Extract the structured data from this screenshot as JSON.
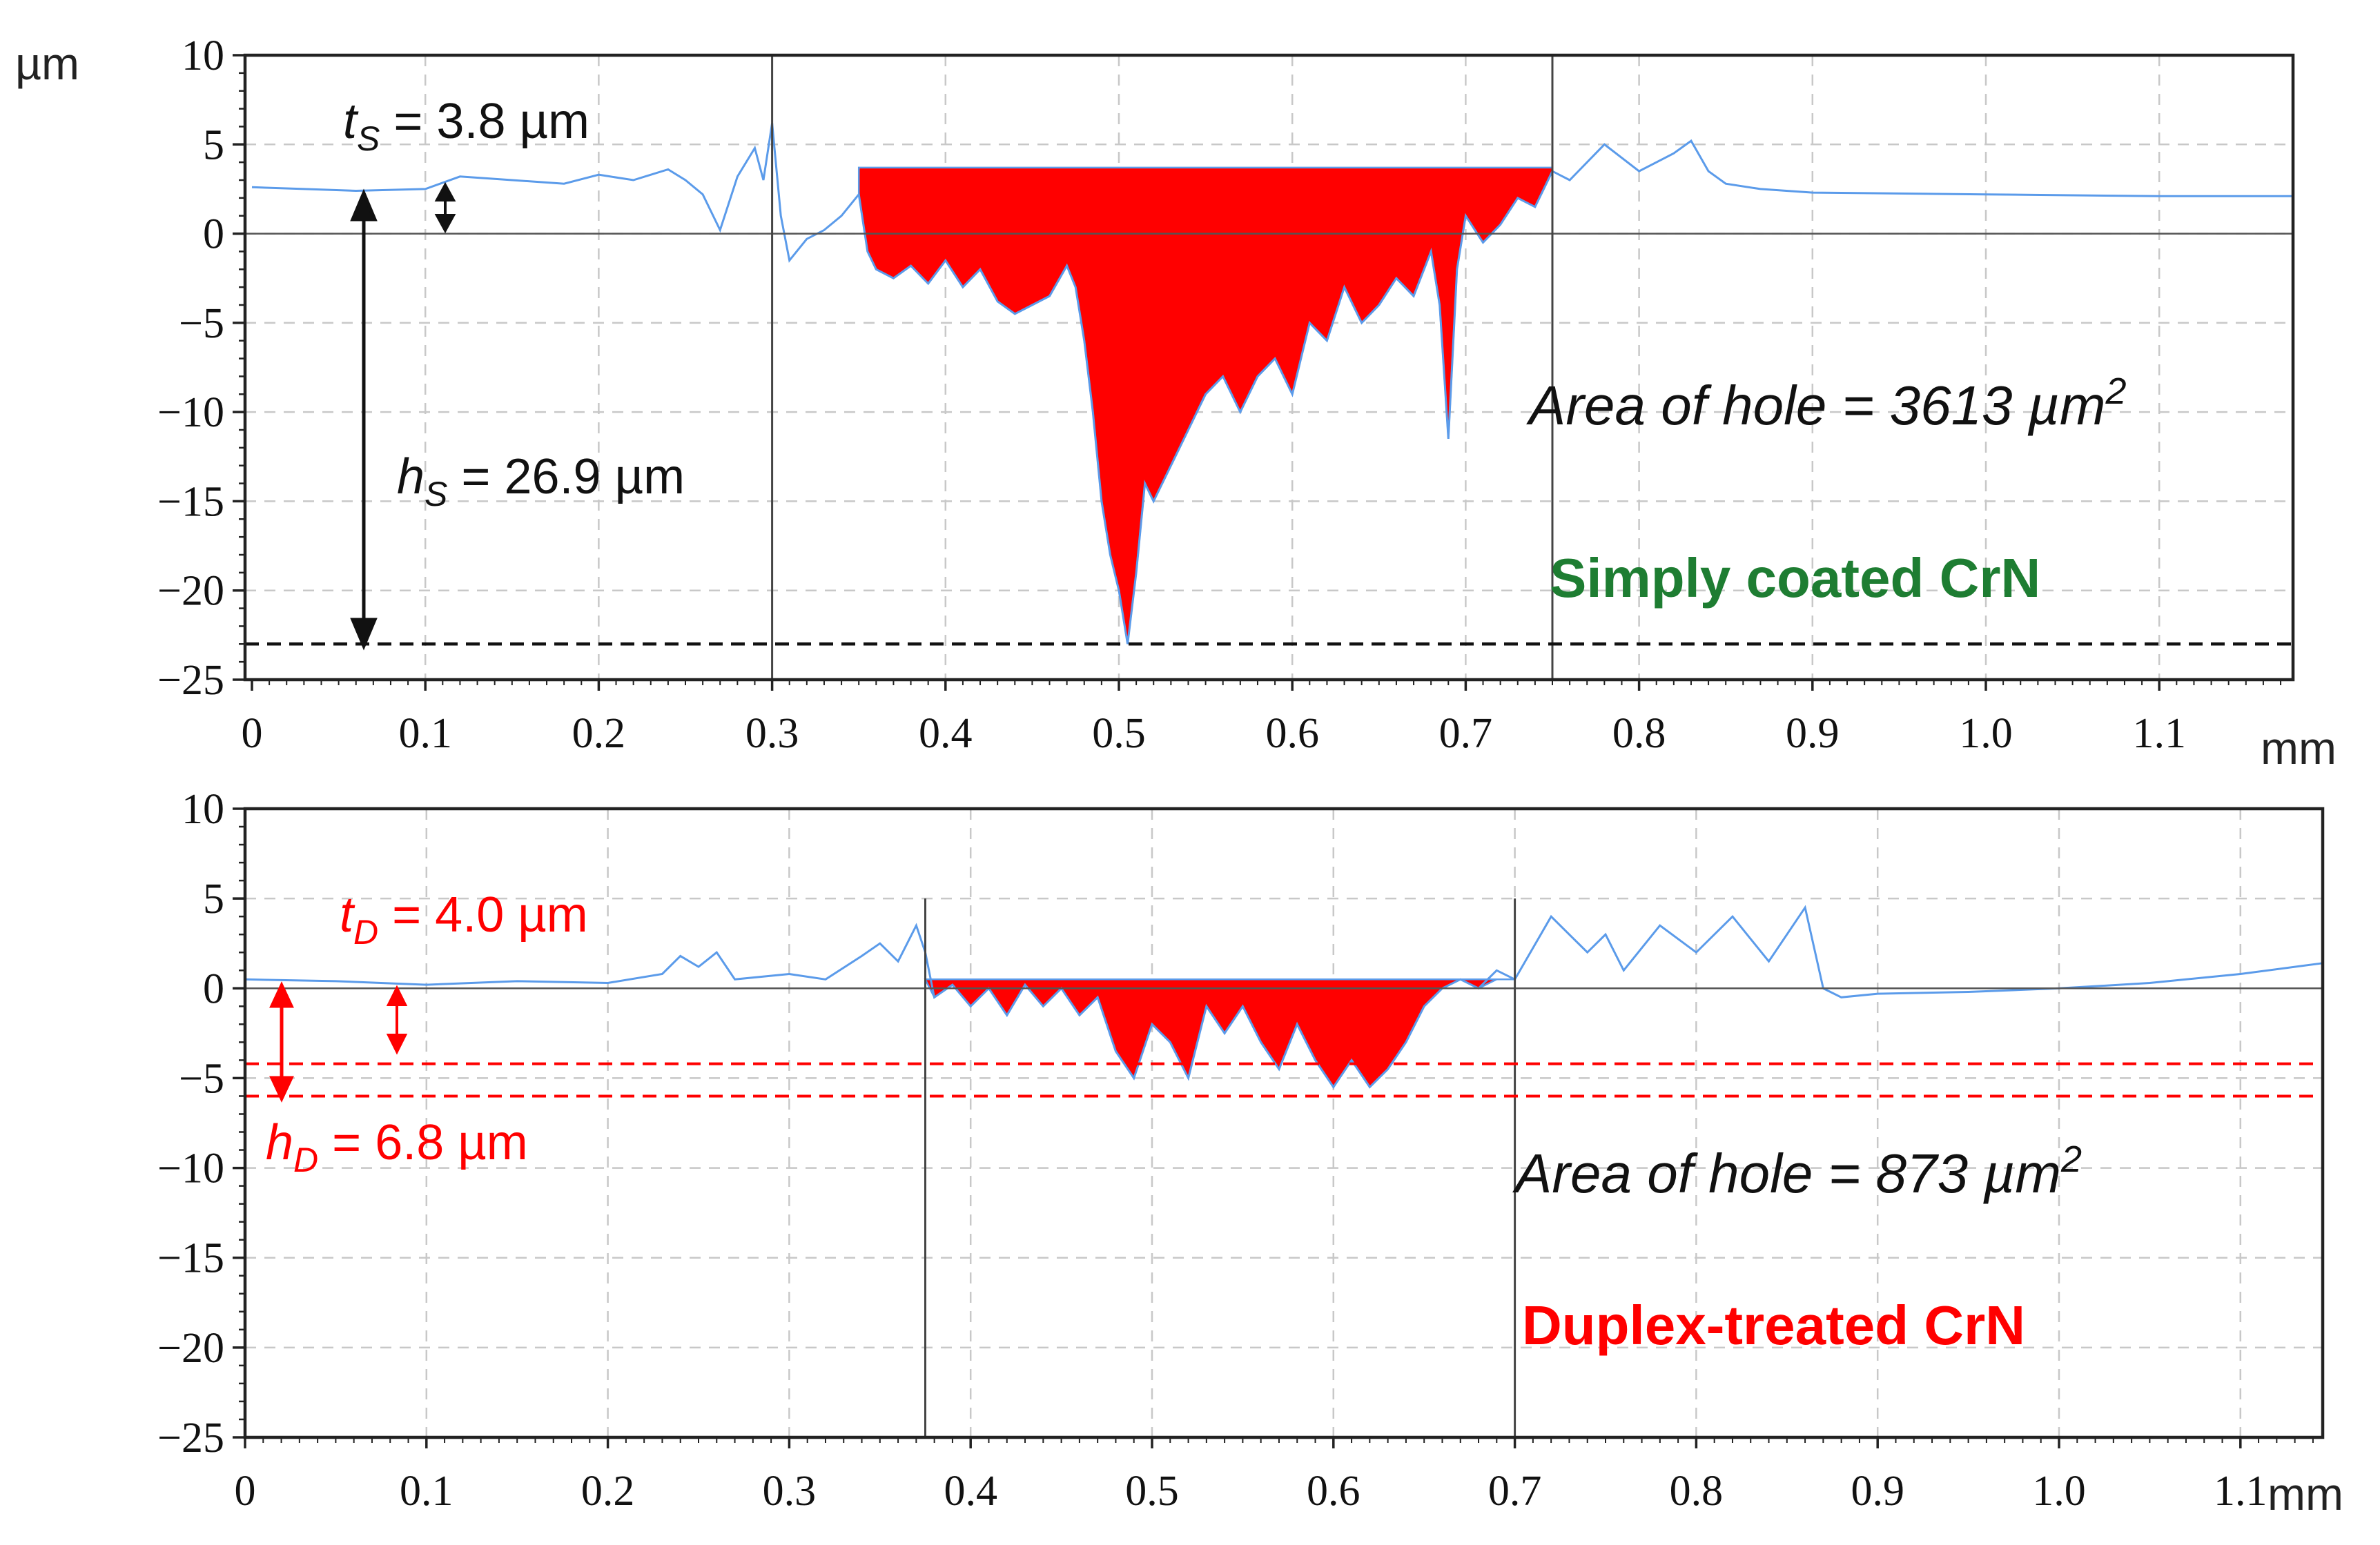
{
  "chart_data": [
    {
      "type": "line",
      "panel": "top",
      "ylabel": "µm",
      "xlabel": "mm",
      "ylim": [
        -25,
        10
      ],
      "xlim": [
        0,
        1.2
      ],
      "y_ticks": [
        10,
        5,
        0,
        -5,
        -10,
        -15,
        -20,
        -25
      ],
      "y_tick_labels": [
        "10",
        "5",
        "0",
        "−5",
        "−10",
        "−15",
        "−20",
        "−25"
      ],
      "x_ticks": [
        0,
        0.1,
        0.2,
        0.3,
        0.4,
        0.5,
        0.6,
        0.7,
        0.8,
        0.9,
        1.0,
        1.1
      ],
      "x_tick_labels": [
        "0",
        "0.1",
        "0.2",
        "0.3",
        "0.4",
        "0.5",
        "0.6",
        "0.7",
        "0.8",
        "0.9",
        "1.0",
        "1.1"
      ],
      "vertical_markers": [
        0.3,
        0.75
      ],
      "reference_level": -23,
      "hole": {
        "x_start": 0.35,
        "x_end": 0.75,
        "top": 3.7
      },
      "series": [
        {
          "name": "surface profile",
          "color": "#5b9bea",
          "points": [
            [
              0,
              2.6
            ],
            [
              0.03,
              2.5
            ],
            [
              0.06,
              2.4
            ],
            [
              0.1,
              2.5
            ],
            [
              0.12,
              3.2
            ],
            [
              0.15,
              3.0
            ],
            [
              0.18,
              2.8
            ],
            [
              0.2,
              3.3
            ],
            [
              0.22,
              3.0
            ],
            [
              0.24,
              3.6
            ],
            [
              0.25,
              3.0
            ],
            [
              0.26,
              2.2
            ],
            [
              0.27,
              0.2
            ],
            [
              0.28,
              3.2
            ],
            [
              0.29,
              4.8
            ],
            [
              0.295,
              3.0
            ],
            [
              0.3,
              6.2
            ],
            [
              0.305,
              1.0
            ],
            [
              0.31,
              -1.5
            ],
            [
              0.32,
              -0.3
            ],
            [
              0.33,
              0.2
            ],
            [
              0.34,
              1.0
            ],
            [
              0.35,
              2.2
            ],
            [
              0.355,
              -1.0
            ],
            [
              0.36,
              -2.0
            ],
            [
              0.37,
              -2.5
            ],
            [
              0.38,
              -1.8
            ],
            [
              0.39,
              -2.8
            ],
            [
              0.4,
              -1.5
            ],
            [
              0.41,
              -3.0
            ],
            [
              0.42,
              -2.0
            ],
            [
              0.43,
              -3.8
            ],
            [
              0.44,
              -4.5
            ],
            [
              0.45,
              -4.0
            ],
            [
              0.46,
              -3.5
            ],
            [
              0.47,
              -1.8
            ],
            [
              0.475,
              -3.0
            ],
            [
              0.48,
              -6.0
            ],
            [
              0.485,
              -10.0
            ],
            [
              0.49,
              -15.0
            ],
            [
              0.495,
              -18.0
            ],
            [
              0.5,
              -20.0
            ],
            [
              0.505,
              -23.0
            ],
            [
              0.51,
              -19.0
            ],
            [
              0.515,
              -14.0
            ],
            [
              0.52,
              -15.0
            ],
            [
              0.53,
              -13.0
            ],
            [
              0.54,
              -11.0
            ],
            [
              0.55,
              -9.0
            ],
            [
              0.56,
              -8.0
            ],
            [
              0.57,
              -10.0
            ],
            [
              0.58,
              -8.0
            ],
            [
              0.59,
              -7.0
            ],
            [
              0.6,
              -9.0
            ],
            [
              0.61,
              -5.0
            ],
            [
              0.62,
              -6.0
            ],
            [
              0.63,
              -3.0
            ],
            [
              0.64,
              -5.0
            ],
            [
              0.65,
              -4.0
            ],
            [
              0.66,
              -2.5
            ],
            [
              0.67,
              -3.5
            ],
            [
              0.68,
              -1.0
            ],
            [
              0.685,
              -4.0
            ],
            [
              0.69,
              -11.5
            ],
            [
              0.695,
              -2.0
            ],
            [
              0.7,
              1.0
            ],
            [
              0.71,
              -0.5
            ],
            [
              0.72,
              0.5
            ],
            [
              0.73,
              2.0
            ],
            [
              0.74,
              1.5
            ],
            [
              0.75,
              3.5
            ],
            [
              0.76,
              3.0
            ],
            [
              0.78,
              5.0
            ],
            [
              0.8,
              3.5
            ],
            [
              0.82,
              4.5
            ],
            [
              0.83,
              5.2
            ],
            [
              0.84,
              3.5
            ],
            [
              0.85,
              2.8
            ],
            [
              0.87,
              2.5
            ],
            [
              0.9,
              2.3
            ],
            [
              1.0,
              2.2
            ],
            [
              1.1,
              2.1
            ],
            [
              1.2,
              2.1
            ]
          ]
        }
      ],
      "annotations": {
        "t_label": "t",
        "t_sub": "S",
        "t_value": " = 3.8 µm",
        "h_label": "h",
        "h_sub": "S",
        "h_value": " = 26.9 µm",
        "area_text": "Area of hole = 3613 µm",
        "area_sup": "2",
        "sample_label": "Simply coated CrN",
        "sample_color": "#1e7d32"
      }
    },
    {
      "type": "line",
      "panel": "bottom",
      "ylabel": "",
      "xlabel": "mm",
      "ylim": [
        -25,
        10
      ],
      "xlim": [
        0,
        1.15
      ],
      "y_ticks": [
        10,
        5,
        0,
        -5,
        -10,
        -15,
        -20,
        -25
      ],
      "y_tick_labels": [
        "10",
        "5",
        "0",
        "−5",
        "−10",
        "−15",
        "−20",
        "−25"
      ],
      "x_ticks": [
        0,
        0.1,
        0.2,
        0.3,
        0.4,
        0.5,
        0.6,
        0.7,
        0.8,
        0.9,
        1.0,
        1.1
      ],
      "x_tick_labels": [
        "0",
        "0.1",
        "0.2",
        "0.3",
        "0.4",
        "0.5",
        "0.6",
        "0.7",
        "0.8",
        "0.9",
        "1.0",
        "1.1"
      ],
      "vertical_markers": [
        0.375,
        0.7
      ],
      "reference_levels": [
        -4.2,
        -6.0
      ],
      "hole": {
        "x_start": 0.375,
        "x_end": 0.7,
        "top": 0.5
      },
      "series": [
        {
          "name": "surface profile",
          "color": "#5b9bea",
          "points": [
            [
              0,
              0.5
            ],
            [
              0.05,
              0.4
            ],
            [
              0.1,
              0.2
            ],
            [
              0.15,
              0.4
            ],
            [
              0.2,
              0.3
            ],
            [
              0.23,
              0.8
            ],
            [
              0.24,
              1.8
            ],
            [
              0.25,
              1.2
            ],
            [
              0.26,
              2.0
            ],
            [
              0.27,
              0.5
            ],
            [
              0.3,
              0.8
            ],
            [
              0.32,
              0.5
            ],
            [
              0.34,
              1.8
            ],
            [
              0.35,
              2.5
            ],
            [
              0.36,
              1.5
            ],
            [
              0.37,
              3.5
            ],
            [
              0.375,
              2.0
            ],
            [
              0.38,
              -0.5
            ],
            [
              0.39,
              0.2
            ],
            [
              0.4,
              -1.0
            ],
            [
              0.41,
              0.0
            ],
            [
              0.42,
              -1.5
            ],
            [
              0.43,
              0.2
            ],
            [
              0.44,
              -1.0
            ],
            [
              0.45,
              0.0
            ],
            [
              0.46,
              -1.5
            ],
            [
              0.47,
              -0.5
            ],
            [
              0.48,
              -3.5
            ],
            [
              0.49,
              -5.0
            ],
            [
              0.5,
              -2.0
            ],
            [
              0.51,
              -3.0
            ],
            [
              0.52,
              -5.0
            ],
            [
              0.53,
              -1.0
            ],
            [
              0.54,
              -2.5
            ],
            [
              0.55,
              -1.0
            ],
            [
              0.56,
              -3.0
            ],
            [
              0.57,
              -4.5
            ],
            [
              0.58,
              -2.0
            ],
            [
              0.59,
              -4.0
            ],
            [
              0.6,
              -5.5
            ],
            [
              0.61,
              -4.0
            ],
            [
              0.62,
              -5.5
            ],
            [
              0.63,
              -4.5
            ],
            [
              0.64,
              -3.0
            ],
            [
              0.65,
              -1.0
            ],
            [
              0.66,
              0.0
            ],
            [
              0.67,
              0.5
            ],
            [
              0.68,
              0.0
            ],
            [
              0.69,
              1.0
            ],
            [
              0.7,
              0.5
            ],
            [
              0.72,
              4.0
            ],
            [
              0.73,
              3.0
            ],
            [
              0.74,
              2.0
            ],
            [
              0.75,
              3.0
            ],
            [
              0.76,
              1.0
            ],
            [
              0.78,
              3.5
            ],
            [
              0.8,
              2.0
            ],
            [
              0.82,
              4.0
            ],
            [
              0.84,
              1.5
            ],
            [
              0.86,
              4.5
            ],
            [
              0.87,
              0.0
            ],
            [
              0.88,
              -0.5
            ],
            [
              0.9,
              -0.3
            ],
            [
              0.95,
              -0.2
            ],
            [
              1.0,
              0.0
            ],
            [
              1.05,
              0.3
            ],
            [
              1.1,
              0.8
            ],
            [
              1.15,
              1.4
            ]
          ]
        }
      ],
      "annotations": {
        "t_label": "t",
        "t_sub": "D",
        "t_value": " = 4.0 µm",
        "h_label": "h",
        "h_sub": "D",
        "h_value": " = 6.8 µm",
        "area_text": "Area of hole = 873 µm",
        "area_sup": "2",
        "sample_label": "Duplex-treated CrN",
        "sample_color": "#ff0000"
      }
    }
  ],
  "colors": {
    "profile": "#5b9bea",
    "hole_fill": "#ff0000",
    "top_annotation": "#111111",
    "bottom_annotation": "#ff0000"
  }
}
